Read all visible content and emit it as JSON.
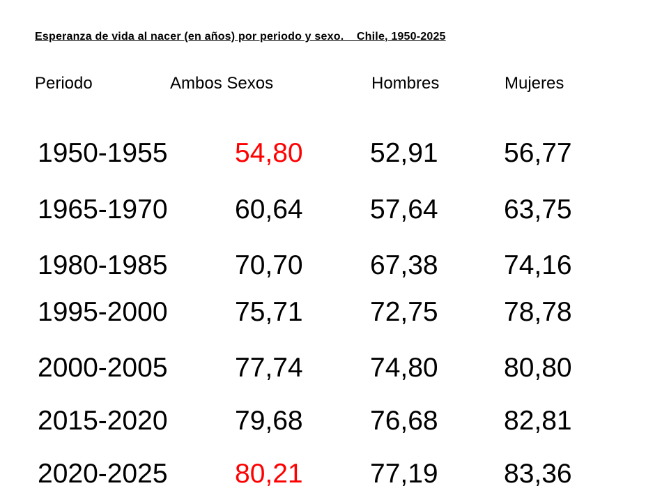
{
  "title": "Esperanza de vida al nacer (en años) por periodo y sexo.    Chile, 1950-2025",
  "headers": [
    "Periodo",
    "Ambos Sexos",
    "Hombres",
    "Mujeres"
  ],
  "rows": [
    {
      "periodo": "1950-1955",
      "ambos": "54,80",
      "hombres": "52,91",
      "mujeres": "56,77"
    },
    {
      "periodo": "1965-1970",
      "ambos": "60,64",
      "hombres": "57,64",
      "mujeres": "63,75"
    },
    {
      "periodo": "1980-1985",
      "ambos": "70,70",
      "hombres": "67,38",
      "mujeres": "74,16"
    },
    {
      "periodo": "1995-2000",
      "ambos": "75,71",
      "hombres": "72,75",
      "mujeres": "78,78"
    },
    {
      "periodo": "2000-2005",
      "ambos": "77,74",
      "hombres": "74,80",
      "mujeres": "80,80"
    },
    {
      "periodo": "2015-2020",
      "ambos": "79,68",
      "hombres": "76,68",
      "mujeres": "82,81"
    },
    {
      "periodo": "2020-2025",
      "ambos": "80,21",
      "hombres": "77,19",
      "mujeres": "83,36"
    }
  ],
  "highlight_color": "#ff0000"
}
